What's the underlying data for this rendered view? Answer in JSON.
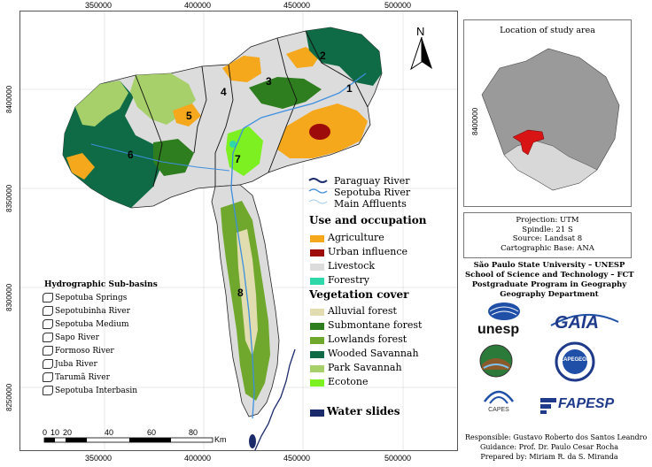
{
  "map": {
    "x_ticks": [
      "350000",
      "400000",
      "450000",
      "500000"
    ],
    "y_ticks": [
      "8400000",
      "8350000",
      "8300000",
      "8250000"
    ],
    "north_label": "N",
    "subbasin_numbers": [
      "1",
      "2",
      "3",
      "4",
      "5",
      "6",
      "7",
      "8"
    ]
  },
  "legend": {
    "lines": [
      {
        "label": "Paraguay River",
        "color": "#1b2a6b"
      },
      {
        "label": "Sepotuba River",
        "color": "#3d8fe0"
      },
      {
        "label": "Main Affluents",
        "color": "#9ec9e8"
      }
    ],
    "use_title": "Use and occupation",
    "use_items": [
      {
        "label": "Agriculture",
        "color": "#f5a81c"
      },
      {
        "label": "Urban influence",
        "color": "#9e0b0b"
      },
      {
        "label": "Livestock",
        "color": "#dcdcdc"
      },
      {
        "label": "Forestry",
        "color": "#2fd8a8"
      }
    ],
    "veg_title": "Vegetation cover",
    "veg_items": [
      {
        "label": "Alluvial forest",
        "color": "#e2ddb0"
      },
      {
        "label": "Submontane forest",
        "color": "#2e7d1e"
      },
      {
        "label": "Lowlands forest",
        "color": "#6fa82c"
      },
      {
        "label": "Wooded Savannah",
        "color": "#0f6b45"
      },
      {
        "label": "Park Savannah",
        "color": "#a7cf6a"
      },
      {
        "label": "Ecotone",
        "color": "#7cf021"
      }
    ],
    "water_label": "Water slides",
    "water_color": "#1b2a6b"
  },
  "subbasins": {
    "title": "Hydrographic Sub-basins",
    "items": [
      "Sepotuba Springs",
      "Sepotubinha River",
      "Sepotuba Medium",
      "Sapo River",
      "Formoso River",
      "Juba River",
      "Tarumã River",
      "Sepotuba Interbasin"
    ]
  },
  "scalebar": {
    "labels": [
      "0",
      "10",
      "20",
      "40",
      "60",
      "80"
    ],
    "unit": "Km"
  },
  "location": {
    "title": "Location of study area",
    "ytick": "8400000"
  },
  "projection": {
    "lines": [
      "Projection: UTM",
      "Spindle: 21 S",
      "Source: Landsat 8",
      "Cartographic Base: ANA"
    ]
  },
  "institution": {
    "lines": [
      "São Paulo State University – UNESP",
      "School of Science and Technology – FCT",
      "Postgraduate Program in Geography",
      "Geography Department"
    ]
  },
  "logos": {
    "unesp": "unesp",
    "gaia": "GAIA",
    "lapegeof": "LAPEGEOF",
    "capes": "CAPES",
    "fapesp": "FAPESP"
  },
  "credits": {
    "lines": [
      "Responsible: Gustavo Roberto dos Santos Leandro",
      "Guidance: Prof. Dr. Paulo Cesar Rocha",
      "Prepared by: Miriam R. da S. Miranda"
    ]
  }
}
